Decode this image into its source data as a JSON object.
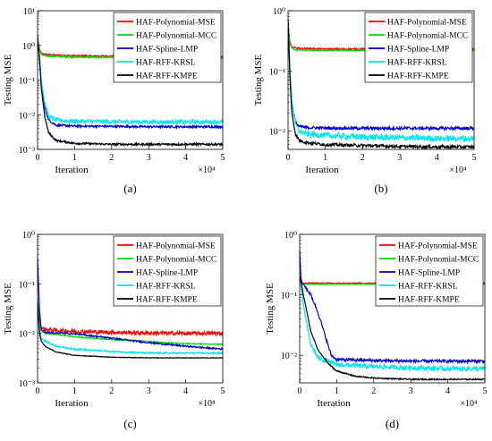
{
  "chart_data": [
    {
      "type": "line",
      "panel_label": "(a)",
      "xlabel": "Iteration",
      "ylabel": "Testing MSE",
      "x_multiplier": "×10⁴",
      "xlim": [
        0,
        5
      ],
      "ylim": [
        0.001,
        10
      ],
      "yscale": "log",
      "xticks": [
        "0",
        "1",
        "2",
        "3",
        "4",
        "5"
      ],
      "yticks": [
        "10⁻³",
        "10⁻²",
        "10⁻¹",
        "10⁰",
        "10¹"
      ],
      "legend_position": "top-right",
      "series": [
        {
          "name": "HAF-Polynomial-MSE",
          "color": "#ff0000",
          "x": [
            0,
            0.05,
            0.1,
            0.2,
            0.5,
            1,
            2,
            3,
            4,
            5
          ],
          "y": [
            1.5,
            0.8,
            0.6,
            0.55,
            0.52,
            0.5,
            0.49,
            0.48,
            0.48,
            0.47
          ],
          "noise": 0.05
        },
        {
          "name": "HAF-Polynomial-MCC",
          "color": "#00dd00",
          "x": [
            0,
            0.05,
            0.1,
            0.2,
            0.5,
            1,
            2,
            3,
            4,
            5
          ],
          "y": [
            1.5,
            0.75,
            0.55,
            0.5,
            0.48,
            0.46,
            0.45,
            0.44,
            0.44,
            0.43
          ],
          "noise": 0.04
        },
        {
          "name": "HAF-Spline-LMP",
          "color": "#0000cc",
          "x": [
            0,
            0.05,
            0.1,
            0.2,
            0.3,
            0.5,
            1,
            2,
            3,
            4,
            5
          ],
          "y": [
            1.8,
            0.5,
            0.1,
            0.015,
            0.007,
            0.005,
            0.0047,
            0.0046,
            0.0045,
            0.0045,
            0.0045
          ],
          "noise": 0.06
        },
        {
          "name": "HAF-RFF-KRSL",
          "color": "#00e5ee",
          "x": [
            0,
            0.05,
            0.1,
            0.2,
            0.3,
            0.5,
            1,
            2,
            3,
            4,
            5
          ],
          "y": [
            1.8,
            0.5,
            0.1,
            0.02,
            0.009,
            0.007,
            0.0065,
            0.0063,
            0.0062,
            0.0062,
            0.0062
          ],
          "noise": 0.12
        },
        {
          "name": "HAF-RFF-KMPE",
          "color": "#000000",
          "x": [
            0,
            0.05,
            0.1,
            0.2,
            0.3,
            0.5,
            1,
            2,
            3,
            4,
            5
          ],
          "y": [
            1.8,
            0.4,
            0.06,
            0.008,
            0.003,
            0.0018,
            0.0015,
            0.0014,
            0.0014,
            0.0014,
            0.0014
          ],
          "noise": 0.06
        }
      ]
    },
    {
      "type": "line",
      "panel_label": "(b)",
      "xlabel": "Iteration",
      "ylabel": "Testing MSE",
      "x_multiplier": "×10⁴",
      "xlim": [
        0,
        5
      ],
      "ylim": [
        0.005,
        1
      ],
      "yscale": "log",
      "xticks": [
        "0",
        "1",
        "2",
        "3",
        "4",
        "5"
      ],
      "yticks": [
        "10⁻²",
        "10⁻¹",
        "10⁰"
      ],
      "legend_position": "top-right",
      "series": [
        {
          "name": "HAF-Polynomial-MSE",
          "color": "#ff0000",
          "x": [
            0,
            0.05,
            0.1,
            0.2,
            0.5,
            1,
            2,
            3,
            4,
            5
          ],
          "y": [
            0.6,
            0.3,
            0.25,
            0.24,
            0.235,
            0.23,
            0.23,
            0.23,
            0.23,
            0.23
          ],
          "noise": 0.03
        },
        {
          "name": "HAF-Polynomial-MCC",
          "color": "#00dd00",
          "x": [
            0,
            0.05,
            0.1,
            0.2,
            0.5,
            1,
            2,
            3,
            4,
            5
          ],
          "y": [
            0.6,
            0.28,
            0.24,
            0.225,
            0.22,
            0.22,
            0.22,
            0.22,
            0.22,
            0.22
          ],
          "noise": 0.02
        },
        {
          "name": "HAF-Spline-LMP",
          "color": "#0000cc",
          "x": [
            0,
            0.05,
            0.1,
            0.2,
            0.3,
            0.5,
            1,
            2,
            3,
            4,
            5
          ],
          "y": [
            0.7,
            0.1,
            0.03,
            0.014,
            0.012,
            0.0115,
            0.0113,
            0.0112,
            0.0112,
            0.0112,
            0.0112
          ],
          "noise": 0.05
        },
        {
          "name": "HAF-RFF-KRSL",
          "color": "#00e5ee",
          "x": [
            0,
            0.05,
            0.1,
            0.2,
            0.3,
            0.5,
            1,
            2,
            3,
            4,
            5
          ],
          "y": [
            0.7,
            0.1,
            0.03,
            0.013,
            0.01,
            0.009,
            0.0085,
            0.008,
            0.0078,
            0.0076,
            0.0075
          ],
          "noise": 0.1
        },
        {
          "name": "HAF-RFF-KMPE",
          "color": "#000000",
          "x": [
            0,
            0.05,
            0.1,
            0.2,
            0.3,
            0.5,
            1,
            2,
            3,
            4,
            5
          ],
          "y": [
            0.7,
            0.08,
            0.02,
            0.009,
            0.007,
            0.0065,
            0.006,
            0.0058,
            0.0056,
            0.0055,
            0.0055
          ],
          "noise": 0.05
        }
      ]
    },
    {
      "type": "line",
      "panel_label": "(c)",
      "xlabel": "Iteration",
      "ylabel": "Testing MSE",
      "x_multiplier": "×10⁴",
      "xlim": [
        0,
        5
      ],
      "ylim": [
        0.001,
        1
      ],
      "yscale": "log",
      "xticks": [
        "0",
        "1",
        "2",
        "3",
        "4",
        "5"
      ],
      "yticks": [
        "10⁻³",
        "10⁻²",
        "10⁻¹",
        "10⁰"
      ],
      "legend_position": "top-right",
      "series": [
        {
          "name": "HAF-Polynomial-MSE",
          "color": "#ff0000",
          "x": [
            0,
            0.05,
            0.1,
            0.2,
            0.5,
            1,
            2,
            3,
            4,
            5
          ],
          "y": [
            0.05,
            0.02,
            0.013,
            0.012,
            0.0115,
            0.011,
            0.0105,
            0.0102,
            0.01,
            0.01
          ],
          "noise": 0.08
        },
        {
          "name": "HAF-Polynomial-MCC",
          "color": "#00dd00",
          "x": [
            0,
            0.05,
            0.1,
            0.2,
            0.5,
            1,
            2,
            3,
            4,
            5
          ],
          "y": [
            0.05,
            0.015,
            0.011,
            0.01,
            0.0095,
            0.0085,
            0.0075,
            0.0068,
            0.0062,
            0.006
          ],
          "noise": 0.02
        },
        {
          "name": "HAF-Spline-LMP",
          "color": "#0000cc",
          "x": [
            0,
            0.05,
            0.1,
            0.2,
            0.5,
            1,
            2,
            3,
            4,
            5
          ],
          "y": [
            0.35,
            0.03,
            0.012,
            0.0105,
            0.0102,
            0.0098,
            0.008,
            0.0065,
            0.0055,
            0.0048
          ],
          "noise": 0.03
        },
        {
          "name": "HAF-RFF-KRSL",
          "color": "#00e5ee",
          "x": [
            0,
            0.05,
            0.1,
            0.2,
            0.5,
            1,
            2,
            3,
            4,
            5
          ],
          "y": [
            0.05,
            0.012,
            0.008,
            0.007,
            0.0055,
            0.0048,
            0.0043,
            0.004,
            0.004,
            0.004
          ],
          "noise": 0.03
        },
        {
          "name": "HAF-RFF-KMPE",
          "color": "#000000",
          "x": [
            0,
            0.05,
            0.1,
            0.2,
            0.5,
            1,
            2,
            3,
            4,
            5
          ],
          "y": [
            0.04,
            0.01,
            0.007,
            0.0055,
            0.0042,
            0.0036,
            0.0033,
            0.0032,
            0.0032,
            0.0032
          ],
          "noise": 0.01
        }
      ]
    },
    {
      "type": "line",
      "panel_label": "(d)",
      "xlabel": "Iteration",
      "ylabel": "Testing MSE",
      "x_multiplier": "×10⁴",
      "xlim": [
        0,
        5
      ],
      "ylim": [
        0.0035,
        1
      ],
      "yscale": "log",
      "xticks": [
        "0",
        "1",
        "2",
        "3",
        "4",
        "5"
      ],
      "yticks": [
        "10⁻²",
        "10⁻¹",
        "10⁰"
      ],
      "legend_position": "top-right",
      "series": [
        {
          "name": "HAF-Polynomial-MSE",
          "color": "#ff0000",
          "x": [
            0,
            0.05,
            0.1,
            0.2,
            0.5,
            1,
            2,
            3,
            4,
            5
          ],
          "y": [
            0.2,
            0.16,
            0.155,
            0.155,
            0.155,
            0.155,
            0.155,
            0.155,
            0.155,
            0.155
          ],
          "noise": 0.02
        },
        {
          "name": "HAF-Polynomial-MCC",
          "color": "#00dd00",
          "x": [
            0,
            0.05,
            0.1,
            0.2,
            0.5,
            1,
            2,
            3,
            4,
            5
          ],
          "y": [
            0.18,
            0.155,
            0.15,
            0.15,
            0.15,
            0.15,
            0.15,
            0.15,
            0.15,
            0.15
          ],
          "noise": 0.01
        },
        {
          "name": "HAF-Spline-LMP",
          "color": "#0000cc",
          "x": [
            0,
            0.03,
            0.06,
            0.1,
            0.3,
            0.5,
            0.7,
            0.85,
            1,
            2,
            3,
            4,
            5
          ],
          "y": [
            0.55,
            0.2,
            0.16,
            0.15,
            0.1,
            0.05,
            0.02,
            0.01,
            0.0085,
            0.0082,
            0.008,
            0.008,
            0.008
          ],
          "noise": 0.05
        },
        {
          "name": "HAF-RFF-KRSL",
          "color": "#00e5ee",
          "x": [
            0,
            0.05,
            0.1,
            0.2,
            0.3,
            0.5,
            1,
            2,
            3,
            4,
            5
          ],
          "y": [
            0.2,
            0.12,
            0.07,
            0.03,
            0.015,
            0.009,
            0.007,
            0.0065,
            0.0062,
            0.006,
            0.006
          ],
          "noise": 0.08
        },
        {
          "name": "HAF-RFF-KMPE",
          "color": "#000000",
          "x": [
            0,
            0.05,
            0.1,
            0.2,
            0.3,
            0.5,
            0.8,
            1,
            1.5,
            2,
            3,
            4,
            5
          ],
          "y": [
            0.2,
            0.15,
            0.1,
            0.05,
            0.025,
            0.012,
            0.007,
            0.0055,
            0.0045,
            0.0042,
            0.004,
            0.004,
            0.004
          ],
          "noise": 0.02
        }
      ]
    }
  ]
}
